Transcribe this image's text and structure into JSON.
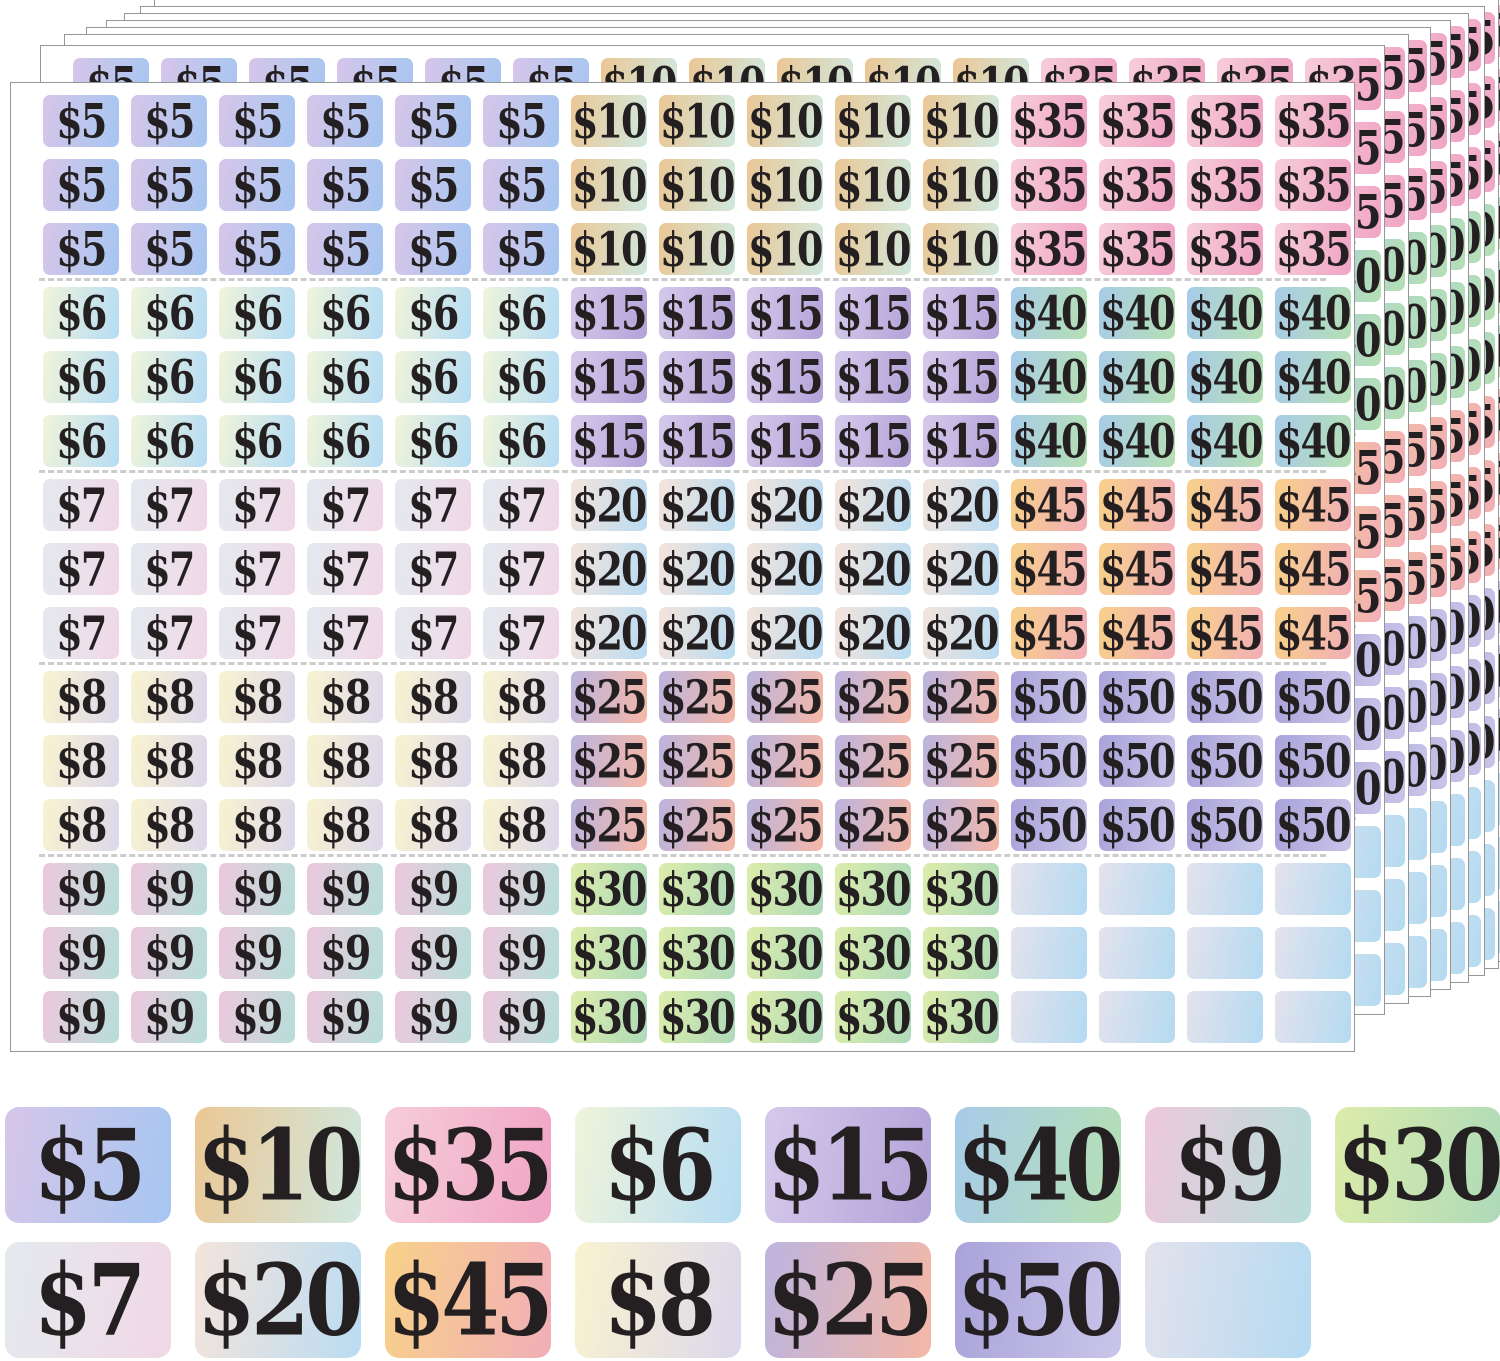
{
  "product": {
    "description": "Pastel gradient price sticker sheets, 9 stacked sheets, 15x15 stickers per sheet, with large sample stickers below",
    "sheet_count": 9,
    "rows_per_band": 3
  },
  "colors": {
    "background": "#ffffff",
    "text": "#241f21",
    "sheet_border": "#969696",
    "dash": "#cccccc"
  },
  "denominations": {
    "d5": {
      "label": "$5",
      "from": "#d7c6e9",
      "to": "#a5c6f1"
    },
    "d10": {
      "label": "$10",
      "from": "#ebc795",
      "to": "#cfe8df"
    },
    "d35": {
      "label": "$35",
      "from": "#f6cdd9",
      "to": "#f0a4c4"
    },
    "d6": {
      "label": "$6",
      "from": "#f0f4da",
      "to": "#b5dcf4"
    },
    "d15": {
      "label": "$15",
      "from": "#d5c9eb",
      "to": "#b2a3d8"
    },
    "d40": {
      "label": "$40",
      "from": "#a8cbe9",
      "to": "#b5e0b3"
    },
    "d7": {
      "label": "$7",
      "from": "#e4eaef",
      "to": "#f1d7e6"
    },
    "d20": {
      "label": "$20",
      "from": "#f4e4db",
      "to": "#badcf2"
    },
    "d45": {
      "label": "$45",
      "from": "#f8d189",
      "to": "#f1aeb8"
    },
    "d8": {
      "label": "$8",
      "from": "#f9f3cf",
      "to": "#dcd7ec"
    },
    "d25": {
      "label": "$25",
      "from": "#bcb4df",
      "to": "#f4b7a6"
    },
    "d50": {
      "label": "$50",
      "from": "#a9a3da",
      "to": "#c9c5e9"
    },
    "d9": {
      "label": "$9",
      "from": "#edc8dc",
      "to": "#b6ded9"
    },
    "d30": {
      "label": "$30",
      "from": "#dcecaa",
      "to": "#aedab9"
    },
    "blank": {
      "label": "",
      "from": "#e3e2ed",
      "to": "#b4daf1"
    }
  },
  "sheet_bands": [
    {
      "groups": [
        {
          "denom": "d5",
          "cols": 6
        },
        {
          "denom": "d10",
          "cols": 5
        },
        {
          "denom": "d35",
          "cols": 4
        }
      ]
    },
    {
      "groups": [
        {
          "denom": "d6",
          "cols": 6
        },
        {
          "denom": "d15",
          "cols": 5
        },
        {
          "denom": "d40",
          "cols": 4
        }
      ]
    },
    {
      "groups": [
        {
          "denom": "d7",
          "cols": 6
        },
        {
          "denom": "d20",
          "cols": 5
        },
        {
          "denom": "d45",
          "cols": 4
        }
      ]
    },
    {
      "groups": [
        {
          "denom": "d8",
          "cols": 6
        },
        {
          "denom": "d25",
          "cols": 5
        },
        {
          "denom": "d50",
          "cols": 4
        }
      ]
    },
    {
      "groups": [
        {
          "denom": "d9",
          "cols": 6
        },
        {
          "denom": "d30",
          "cols": 5
        },
        {
          "denom": "blank",
          "cols": 4
        }
      ]
    }
  ],
  "samples": {
    "row1": [
      "d5",
      "d10",
      "d35",
      "d6",
      "d15",
      "d40",
      "d9",
      "d30"
    ],
    "row2": [
      "d7",
      "d20",
      "d45",
      "d8",
      "d25",
      "d50",
      "blank"
    ]
  }
}
